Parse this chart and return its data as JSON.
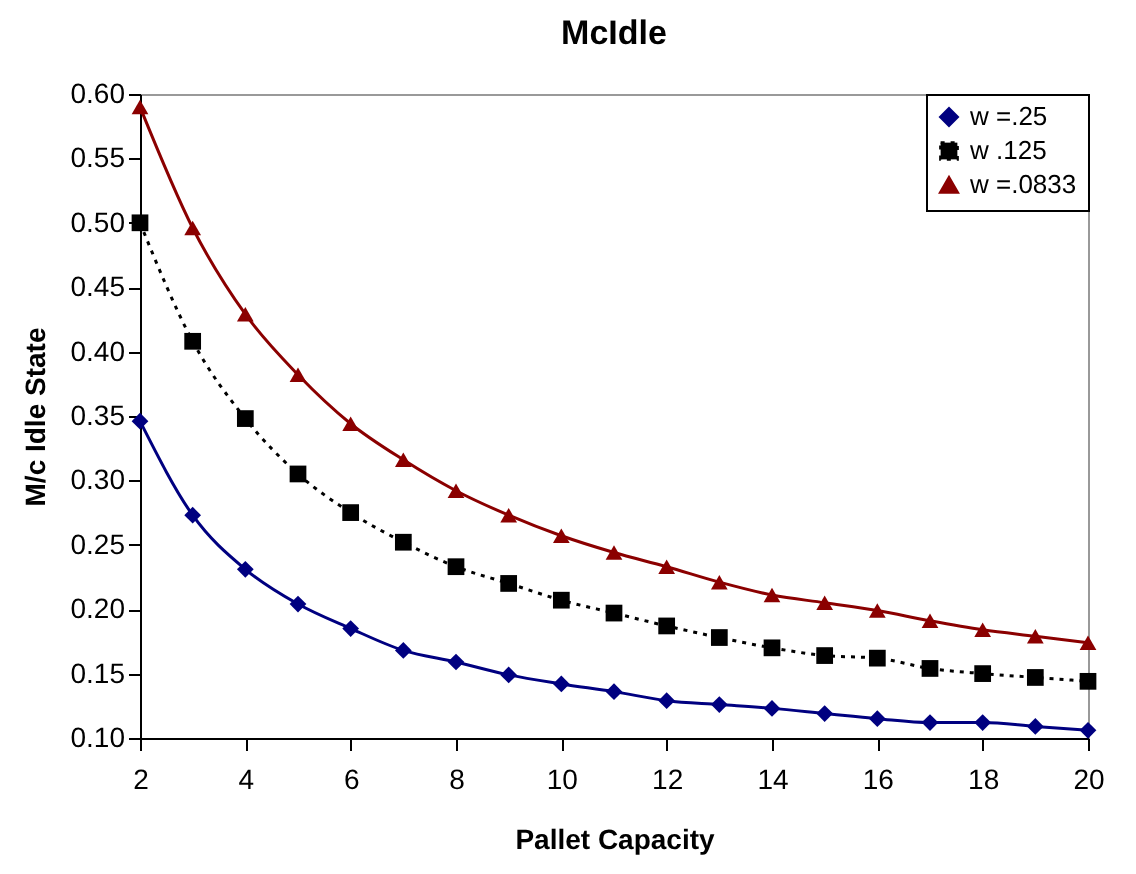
{
  "chart_data": {
    "type": "line",
    "title": "McIdle",
    "xlabel": "Pallet Capacity",
    "ylabel": "M/c Idle State",
    "x": [
      2,
      3,
      4,
      5,
      6,
      7,
      8,
      9,
      10,
      11,
      12,
      13,
      14,
      15,
      16,
      17,
      18,
      19,
      20
    ],
    "series": [
      {
        "name": "w =.25",
        "color": "#000080",
        "marker": "diamond",
        "line_style": "solid",
        "values": [
          0.346,
          0.273,
          0.231,
          0.204,
          0.185,
          0.168,
          0.159,
          0.149,
          0.142,
          0.136,
          0.129,
          0.126,
          0.123,
          0.119,
          0.115,
          0.112,
          0.112,
          0.109,
          0.106
        ]
      },
      {
        "name": "w .125",
        "color": "#000000",
        "marker": "square",
        "line_style": "dotted",
        "values": [
          0.5,
          0.408,
          0.348,
          0.305,
          0.275,
          0.252,
          0.233,
          0.22,
          0.207,
          0.197,
          0.187,
          0.178,
          0.17,
          0.164,
          0.162,
          0.154,
          0.15,
          0.147,
          0.144
        ]
      },
      {
        "name": "w =.0833",
        "color": "#8b0000",
        "marker": "triangle",
        "line_style": "solid",
        "values": [
          0.59,
          0.496,
          0.429,
          0.382,
          0.344,
          0.316,
          0.292,
          0.273,
          0.257,
          0.244,
          0.233,
          0.221,
          0.211,
          0.205,
          0.199,
          0.191,
          0.184,
          0.179,
          0.174
        ]
      }
    ],
    "xlim": [
      2,
      20
    ],
    "xticks": [
      2,
      4,
      6,
      8,
      10,
      12,
      14,
      16,
      18,
      20
    ],
    "ylim": [
      0.1,
      0.6
    ],
    "yticks": [
      {
        "value": 0.1,
        "label": "0.10"
      },
      {
        "value": 0.15,
        "label": "0.15"
      },
      {
        "value": 0.2,
        "label": "0.20"
      },
      {
        "value": 0.25,
        "label": "0.25"
      },
      {
        "value": 0.3,
        "label": "0.30"
      },
      {
        "value": 0.35,
        "label": "0.35"
      },
      {
        "value": 0.4,
        "label": "0.40"
      },
      {
        "value": 0.45,
        "label": "0.45"
      },
      {
        "value": 0.5,
        "label": "0.50"
      },
      {
        "value": 0.55,
        "label": "0.55"
      },
      {
        "value": 0.6,
        "label": "0.60"
      }
    ],
    "grid": false,
    "legend": "top right"
  }
}
